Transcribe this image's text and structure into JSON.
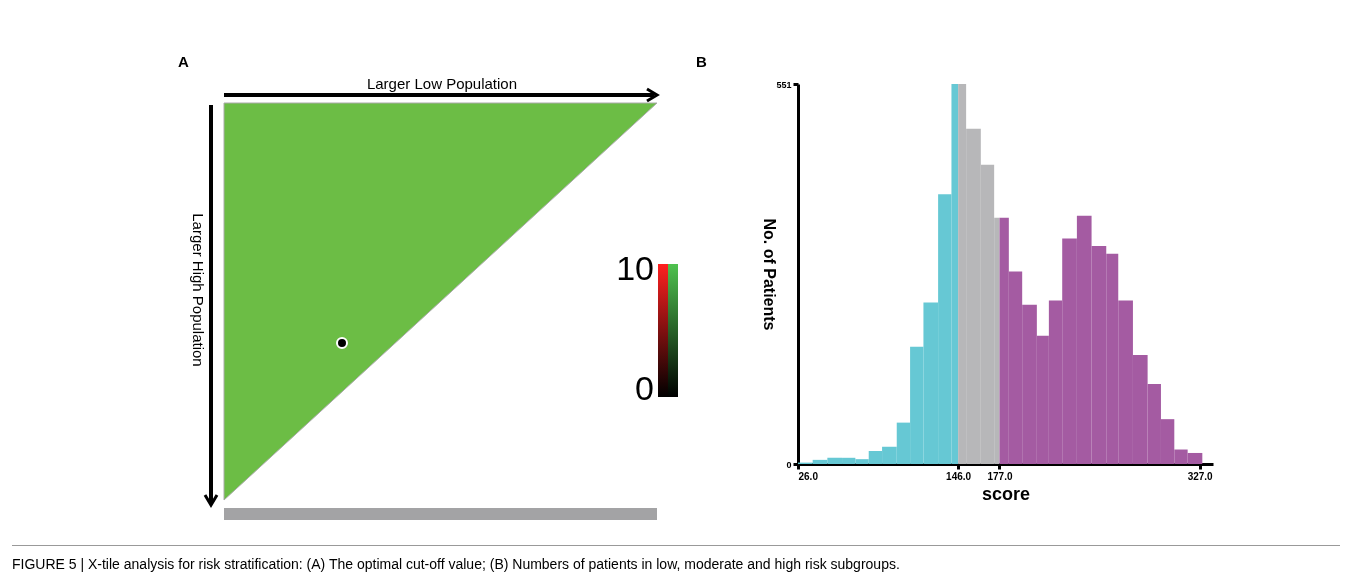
{
  "chart_data": [
    {
      "type": "other",
      "title": "A",
      "xlabel": "Larger Low Population",
      "ylabel": "Larger High Population",
      "annotations": [
        "10",
        "0"
      ]
    },
    {
      "type": "histogram",
      "title": "B",
      "xlabel": "score",
      "ylabel": "No. of Patients",
      "bins": [
        26,
        37,
        48,
        59,
        69,
        79,
        89,
        100,
        110,
        120,
        131,
        141,
        146,
        152,
        163,
        173,
        177,
        184,
        194,
        205,
        214,
        224,
        235,
        246,
        257,
        266,
        277,
        288,
        298,
        308,
        318,
        329
      ],
      "values": [
        2,
        6,
        9,
        9,
        7,
        19,
        25,
        60,
        170,
        234,
        391,
        551,
        551,
        486,
        434,
        357,
        357,
        279,
        231,
        186,
        237,
        327,
        360,
        316,
        305,
        237,
        158,
        116,
        65,
        21,
        16
      ],
      "colors": [
        "#66c8d4",
        "#66c8d4",
        "#66c8d4",
        "#66c8d4",
        "#66c8d4",
        "#66c8d4",
        "#66c8d4",
        "#66c8d4",
        "#66c8d4",
        "#66c8d4",
        "#66c8d4",
        "#66c8d4",
        "#b7b7b9",
        "#b7b7b9",
        "#b7b7b9",
        "#b7b7b9",
        "#a45ba2",
        "#a45ba2",
        "#a45ba2",
        "#a45ba2",
        "#a45ba2",
        "#a45ba2",
        "#a45ba2",
        "#a45ba2",
        "#a45ba2",
        "#a45ba2",
        "#a45ba2",
        "#a45ba2",
        "#a45ba2",
        "#a45ba2",
        "#a45ba2"
      ],
      "xlim": [
        26,
        337
      ],
      "xticks": [
        {
          "value": 26,
          "label": "26.0"
        },
        {
          "value": 146,
          "label": "146.0"
        },
        {
          "value": 177,
          "label": "177.0"
        },
        {
          "value": 327,
          "label": "327.0"
        }
      ],
      "ylim": [
        0,
        551
      ],
      "yticks": [
        0,
        551
      ],
      "grid": false,
      "annotations": [
        "FIGURE 5 | X-tile analysis for risk stratification: (A) The optimal cut-off value; (B) Numbers of patients in low, moderate and high risk subgroups."
      ]
    }
  ]
}
